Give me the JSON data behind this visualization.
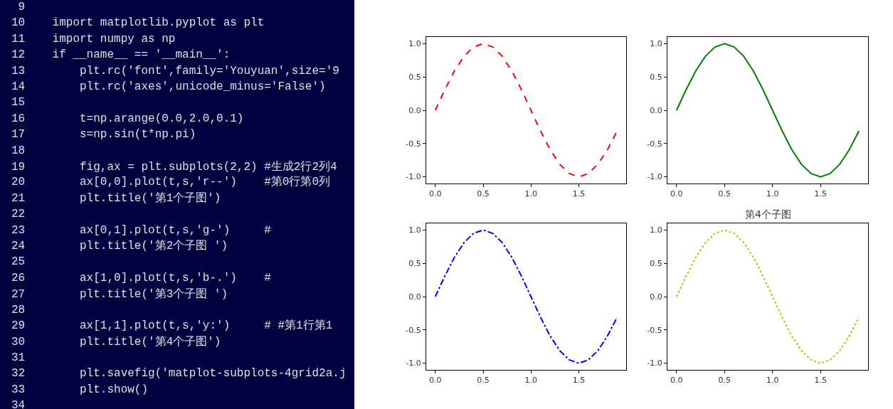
{
  "chart_data": [
    {
      "type": "other",
      "annotations": [
        "9 ",
        "10 import matplotlib.pyplot as plt",
        "11 import numpy as np",
        "12 if __name__ == '__main__':",
        "13     plt.rc('font',family='Youyuan',size='9",
        "14     plt.rc('axes',unicode_minus='False')",
        "15 ",
        "16     t=np.arange(0.0,2.0,0.1)",
        "17     s=np.sin(t*np.pi)",
        "18 ",
        "19     fig,ax = plt.subplots(2,2) #生成2行2列4",
        "20     ax[0,0].plot(t,s,'r--')    #第0行第0列",
        "21     plt.title('第1个子图')",
        "22 ",
        "23     ax[0,1].plot(t,s,'g-')     #",
        "24     plt.title('第2个子图 ')",
        "25 ",
        "26     ax[1,0].plot(t,s,'b-.')    #",
        "27     plt.title('第3个子图 ')",
        "28 ",
        "29     ax[1,1].plot(t,s,'y:')     # #第1行第1",
        "30     plt.title('第4个子图')",
        "31 ",
        "32     plt.savefig('matplot-subplots-4grid2a.j",
        "33     plt.show()",
        "34 "
      ]
    },
    {
      "type": "line",
      "x": [
        0.0,
        0.1,
        0.2,
        0.3,
        0.4,
        0.5,
        0.6,
        0.7,
        0.8,
        0.9,
        1.0,
        1.1,
        1.2,
        1.3,
        1.4,
        1.5,
        1.6,
        1.7,
        1.8,
        1.9
      ],
      "values": [
        0,
        0.31,
        0.59,
        0.81,
        0.95,
        1.0,
        0.95,
        0.81,
        0.59,
        0.31,
        0,
        -0.31,
        -0.59,
        -0.81,
        -0.95,
        -1.0,
        -0.95,
        -0.81,
        -0.59,
        -0.31
      ],
      "color": "#ff0000",
      "line_style": "dashed",
      "xlim": [
        -0.095,
        1.995
      ],
      "ylim": [
        -1.1,
        1.1
      ],
      "xticks": [
        {
          "value": 0,
          "label": "0.0"
        },
        {
          "value": 0.5,
          "label": "0.5"
        },
        {
          "value": 1,
          "label": "1.0"
        },
        {
          "value": 1.5,
          "label": "1.5"
        }
      ],
      "yticks": [
        {
          "value": -1,
          "label": "-1.0"
        },
        {
          "value": -0.5,
          "label": "-0.5"
        },
        {
          "value": 0,
          "label": "0.0"
        },
        {
          "value": 0.5,
          "label": "0.5"
        },
        {
          "value": 1,
          "label": "1.0"
        }
      ]
    },
    {
      "type": "line",
      "x": [
        0.0,
        0.1,
        0.2,
        0.3,
        0.4,
        0.5,
        0.6,
        0.7,
        0.8,
        0.9,
        1.0,
        1.1,
        1.2,
        1.3,
        1.4,
        1.5,
        1.6,
        1.7,
        1.8,
        1.9
      ],
      "values": [
        0,
        0.31,
        0.59,
        0.81,
        0.95,
        1.0,
        0.95,
        0.81,
        0.59,
        0.31,
        0,
        -0.31,
        -0.59,
        -0.81,
        -0.95,
        -1.0,
        -0.95,
        -0.81,
        -0.59,
        -0.31
      ],
      "color": "#008000",
      "line_style": "solid",
      "xlim": [
        -0.095,
        1.995
      ],
      "ylim": [
        -1.1,
        1.1
      ],
      "xticks": [
        {
          "value": 0,
          "label": "0.0"
        },
        {
          "value": 0.5,
          "label": "0.5"
        },
        {
          "value": 1,
          "label": "1.0"
        },
        {
          "value": 1.5,
          "label": "1.5"
        }
      ],
      "yticks": [
        {
          "value": -1,
          "label": "-1.0"
        },
        {
          "value": -0.5,
          "label": "-0.5"
        },
        {
          "value": 0,
          "label": "0.0"
        },
        {
          "value": 0.5,
          "label": "0.5"
        },
        {
          "value": 1,
          "label": "1.0"
        }
      ]
    },
    {
      "type": "line",
      "x": [
        0.0,
        0.1,
        0.2,
        0.3,
        0.4,
        0.5,
        0.6,
        0.7,
        0.8,
        0.9,
        1.0,
        1.1,
        1.2,
        1.3,
        1.4,
        1.5,
        1.6,
        1.7,
        1.8,
        1.9
      ],
      "values": [
        0,
        0.31,
        0.59,
        0.81,
        0.95,
        1.0,
        0.95,
        0.81,
        0.59,
        0.31,
        0,
        -0.31,
        -0.59,
        -0.81,
        -0.95,
        -1.0,
        -0.95,
        -0.81,
        -0.59,
        -0.31
      ],
      "color": "#0000ff",
      "line_style": "dashdot",
      "xlim": [
        -0.095,
        1.995
      ],
      "ylim": [
        -1.1,
        1.1
      ],
      "xticks": [
        {
          "value": 0,
          "label": "0.0"
        },
        {
          "value": 0.5,
          "label": "0.5"
        },
        {
          "value": 1,
          "label": "1.0"
        },
        {
          "value": 1.5,
          "label": "1.5"
        }
      ],
      "yticks": [
        {
          "value": -1,
          "label": "-1.0"
        },
        {
          "value": -0.5,
          "label": "-0.5"
        },
        {
          "value": 0,
          "label": "0.0"
        },
        {
          "value": 0.5,
          "label": "0.5"
        },
        {
          "value": 1,
          "label": "1.0"
        }
      ]
    },
    {
      "type": "line",
      "title": "第4个子图",
      "x": [
        0.0,
        0.1,
        0.2,
        0.3,
        0.4,
        0.5,
        0.6,
        0.7,
        0.8,
        0.9,
        1.0,
        1.1,
        1.2,
        1.3,
        1.4,
        1.5,
        1.6,
        1.7,
        1.8,
        1.9
      ],
      "values": [
        0,
        0.31,
        0.59,
        0.81,
        0.95,
        1.0,
        0.95,
        0.81,
        0.59,
        0.31,
        0,
        -0.31,
        -0.59,
        -0.81,
        -0.95,
        -1.0,
        -0.95,
        -0.81,
        -0.59,
        -0.31
      ],
      "color": "#bfbf00",
      "line_style": "dotted",
      "xlim": [
        -0.095,
        1.995
      ],
      "ylim": [
        -1.1,
        1.1
      ],
      "xticks": [
        {
          "value": 0,
          "label": "0.0"
        },
        {
          "value": 0.5,
          "label": "0.5"
        },
        {
          "value": 1,
          "label": "1.0"
        },
        {
          "value": 1.5,
          "label": "1.5"
        }
      ],
      "yticks": [
        {
          "value": -1,
          "label": "-1.0"
        },
        {
          "value": -0.5,
          "label": "-0.5"
        },
        {
          "value": 0,
          "label": "0.0"
        },
        {
          "value": 0.5,
          "label": "0.5"
        },
        {
          "value": 1,
          "label": "1.0"
        }
      ]
    }
  ]
}
